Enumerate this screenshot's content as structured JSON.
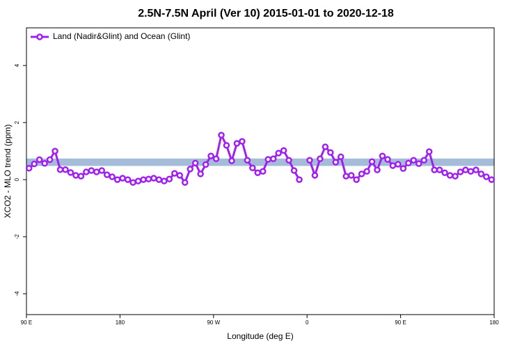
{
  "chart_data": {
    "type": "line",
    "title": "2.5N-7.5N April (Ver 10)   2015-01-01 to 2020-12-18",
    "x_label": "Longitude (deg E)",
    "y_label": "XCO2 - MLO trend (ppm)",
    "x": [
      92.5,
      97.5,
      102.5,
      107.5,
      112.5,
      117.5,
      122.5,
      127.5,
      132.5,
      137.5,
      142.5,
      147.5,
      152.5,
      157.5,
      162.5,
      167.5,
      172.5,
      177.5,
      182.5,
      187.5,
      192.5,
      197.5,
      202.5,
      207.5,
      212.5,
      217.5,
      222.5,
      227.5,
      232.5,
      237.5,
      242.5,
      247.5,
      252.5,
      257.5,
      262.5,
      267.5,
      272.5,
      277.5,
      282.5,
      287.5,
      292.5,
      297.5,
      302.5,
      307.5,
      312.5,
      317.5,
      322.5,
      327.5,
      332.5,
      337.5,
      342.5,
      347.5,
      352.5,
      357.5,
      362.5,
      367.5,
      372.5,
      377.5,
      382.5,
      387.5,
      392.5,
      397.5,
      402.5,
      407.5,
      412.5,
      417.5,
      422.5,
      427.5,
      432.5,
      437.5,
      442.5,
      447.5,
      452.5,
      457.5,
      462.5,
      467.5,
      472.5,
      477.5,
      482.5,
      487.5,
      492.5,
      497.5,
      502.5,
      507.5,
      512.5,
      517.5,
      522.5,
      527.5,
      532.5,
      537.5
    ],
    "series": [
      {
        "name": "Land (Nadir&Glint) and Ocean (Glint)",
        "color": "#a020f0",
        "values": [
          0.4,
          0.55,
          0.7,
          0.57,
          0.7,
          1.0,
          0.35,
          0.35,
          0.25,
          0.15,
          0.12,
          0.27,
          0.32,
          0.27,
          0.32,
          0.17,
          0.1,
          0,
          0.05,
          0,
          -0.1,
          -0.05,
          0,
          0.02,
          0.05,
          0,
          -0.05,
          0.02,
          0.22,
          0.15,
          -0.1,
          0.37,
          0.58,
          0.2,
          0.53,
          0.83,
          0.73,
          1.56,
          1.2,
          0.66,
          1.27,
          1.34,
          0.68,
          0.41,
          0.24,
          0.29,
          0.71,
          0.73,
          0.93,
          1.02,
          0.68,
          0.32,
          0,
          null,
          0.68,
          0.15,
          0.73,
          1.15,
          0.95,
          0.61,
          0.8,
          0.12,
          0.15,
          0,
          0.2,
          0.29,
          0.63,
          0.34,
          0.83,
          0.71,
          0.49,
          0.54,
          0.39,
          0.58,
          0.68,
          0.56,
          0.68,
          0.98,
          0.34,
          0.34,
          0.24,
          0.15,
          0.12,
          0.27,
          0.34,
          0.29,
          0.34,
          0.2,
          0.1,
          0
        ]
      }
    ],
    "band": [
      0.48,
      0.74
    ],
    "band_color": "#a4bcd8",
    "xlim": [
      90,
      540
    ],
    "ylim": [
      -4.73,
      5.32
    ],
    "xticks": [
      {
        "value": 90,
        "label": "90 E"
      },
      180,
      {
        "value": 270,
        "label": "90 W"
      },
      {
        "value": 360,
        "label": "0"
      },
      {
        "value": 450,
        "label": "90 E"
      },
      {
        "value": 540,
        "label": "180"
      }
    ],
    "yticks": [
      -4,
      -2,
      0,
      2,
      4
    ],
    "legend": "top-left"
  }
}
